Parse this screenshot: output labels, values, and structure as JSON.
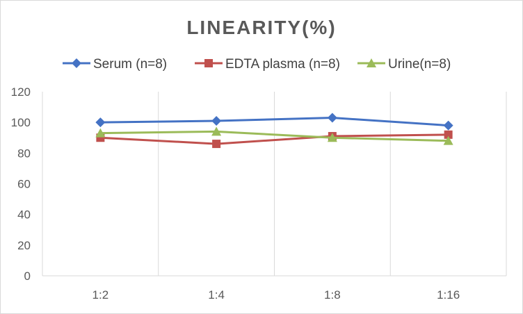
{
  "chart_data": {
    "type": "line",
    "title": "LINEARITY(%)",
    "categories": [
      "1:2",
      "1:4",
      "1:8",
      "1:16"
    ],
    "ylim": [
      0,
      120
    ],
    "yticks": [
      0,
      20,
      40,
      60,
      80,
      100,
      120
    ],
    "legend_position": "top",
    "grid": "vertical",
    "series": [
      {
        "name": "Serum (n=8)",
        "values": [
          100,
          101,
          103,
          98
        ],
        "color": "#4472c4",
        "marker": "diamond"
      },
      {
        "name": "EDTA plasma (n=8)",
        "values": [
          90,
          86,
          91,
          92
        ],
        "color": "#c0504d",
        "marker": "square"
      },
      {
        "name": "Urine(n=8)",
        "values": [
          93,
          94,
          90,
          88
        ],
        "color": "#9bbb59",
        "marker": "triangle"
      }
    ]
  }
}
